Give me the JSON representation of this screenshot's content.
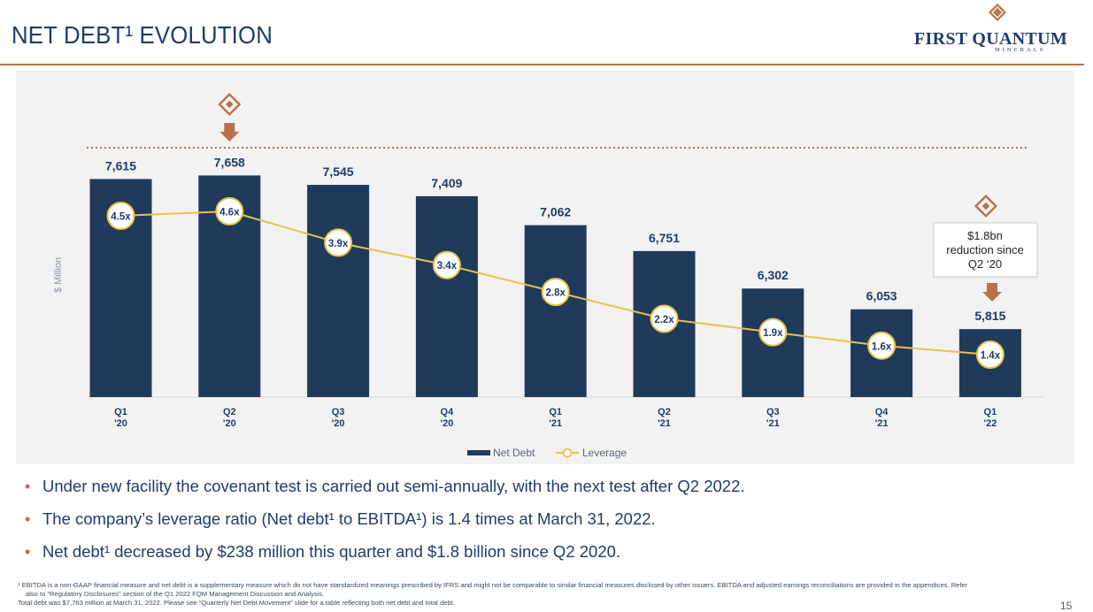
{
  "header": {
    "title": "NET DEBT¹ EVOLUTION",
    "logo_name": "FIRST QUANTUM",
    "logo_sub": "MINERALS"
  },
  "chart_data": {
    "type": "bar",
    "categories": [
      [
        "Q1",
        "'20"
      ],
      [
        "Q2",
        "'20"
      ],
      [
        "Q3",
        "'20"
      ],
      [
        "Q4",
        "'20"
      ],
      [
        "Q1",
        "'21"
      ],
      [
        "Q2",
        "'21"
      ],
      [
        "Q3",
        "'21"
      ],
      [
        "Q4",
        "'21"
      ],
      [
        "Q1",
        "'22"
      ]
    ],
    "series": [
      {
        "name": "Net Debt",
        "type": "bar",
        "values": [
          7615,
          7658,
          7545,
          7409,
          7062,
          6751,
          6302,
          6053,
          5815
        ],
        "labels": [
          "7,615",
          "7,658",
          "7,545",
          "7,409",
          "7,062",
          "6,751",
          "6,302",
          "6,053",
          "5,815"
        ]
      },
      {
        "name": "Leverage",
        "type": "line",
        "values": [
          4.5,
          4.6,
          3.9,
          3.4,
          2.8,
          2.2,
          1.9,
          1.6,
          1.4
        ],
        "labels": [
          "4.5x",
          "4.6x",
          "3.9x",
          "3.4x",
          "2.8x",
          "2.2x",
          "1.9x",
          "1.6x",
          "1.4x"
        ]
      }
    ],
    "ylabel": "$ Million",
    "ylim": [
      5000,
      7800
    ],
    "annotation": [
      "$1.8bn",
      "reduction since",
      "Q2 ‘20"
    ],
    "legend_position": "bottom-center",
    "colors": {
      "bar": "#203a5c",
      "line": "#e8c24a",
      "marker_edge": "#e8c24a",
      "dotted": "#b9714a",
      "arrow": "#b9714a"
    }
  },
  "bullets": [
    "Under new facility the covenant test is carried out semi-annually, with the next test after Q2 2022.",
    "The company’s leverage ratio (Net debt¹ to EBITDA¹) is 1.4 times at March 31, 2022.",
    "Net debt¹ decreased by $238 million this quarter and $1.8 billion since Q2 2020."
  ],
  "footnote": {
    "line1": "¹ EBITDA is a non-GAAP financial measure and net debt is a supplementary measure which do not have standardized meanings prescribed by IFRS and might not be comparable to similar financial measures disclosed by other issuers. EBITDA and adjusted earnings reconciliations are provided in the appendices. Refer",
    "line2": "also to “Regulatory Disclosures” section of the Q1 2022 FQM Management Discussion and Analysis.",
    "line3": "Total debt was $7,763 million at March 31, 2022. Please see “Quarterly Net Debt Movement” slide for a table reflecting both net debt and total debt."
  },
  "page_number": "15"
}
